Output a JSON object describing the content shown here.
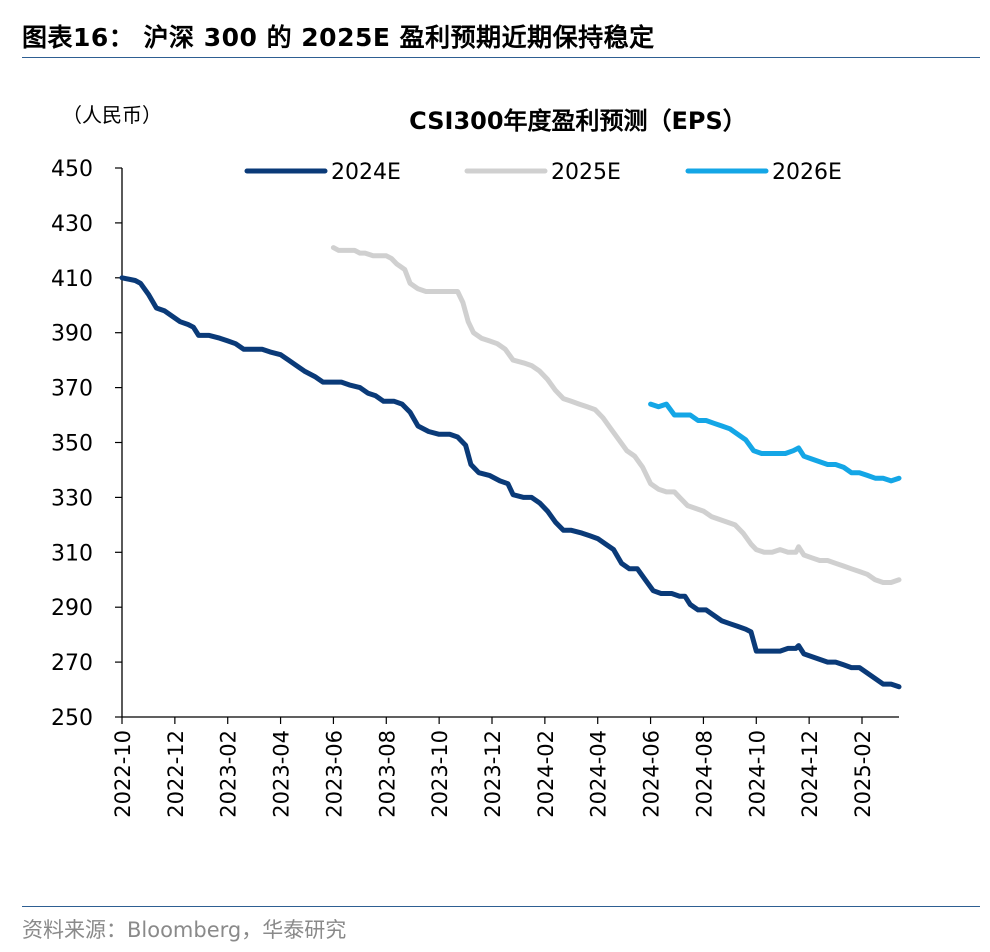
{
  "figure": {
    "title": "图表16：  沪深 300 的 2025E 盈利预期近期保持稳定",
    "source": "资料来源：Bloomberg，华泰研究"
  },
  "chart_data": {
    "type": "line",
    "title": "CSI300年度盈利预测（EPS）",
    "ylabel": "（人民币）",
    "xlabel": "",
    "ylim": [
      250,
      450
    ],
    "yticks": [
      250,
      270,
      290,
      310,
      330,
      350,
      370,
      390,
      410,
      430,
      450
    ],
    "xlim": [
      0,
      29.4
    ],
    "x_tick_positions": [
      0,
      2,
      4,
      6,
      8,
      10,
      12,
      14,
      16,
      18,
      20,
      22,
      24,
      26,
      28
    ],
    "x_tick_labels": [
      "2022-10",
      "2022-12",
      "2023-02",
      "2023-04",
      "2023-06",
      "2023-08",
      "2023-10",
      "2023-12",
      "2024-02",
      "2024-04",
      "2024-06",
      "2024-08",
      "2024-10",
      "2024-12",
      "2025-02"
    ],
    "x_unit": "months since 2022-10",
    "legend_position": "top",
    "series": [
      {
        "name": "2024E",
        "color": "#0a3a78",
        "points": [
          [
            0,
            410
          ],
          [
            0.5,
            409
          ],
          [
            0.7,
            408
          ],
          [
            1.0,
            404
          ],
          [
            1.3,
            399
          ],
          [
            1.6,
            398
          ],
          [
            1.9,
            396
          ],
          [
            2.2,
            394
          ],
          [
            2.5,
            393
          ],
          [
            2.7,
            392
          ],
          [
            2.9,
            389
          ],
          [
            3.3,
            389
          ],
          [
            3.7,
            388
          ],
          [
            4.0,
            387
          ],
          [
            4.3,
            386
          ],
          [
            4.6,
            384
          ],
          [
            5.0,
            384
          ],
          [
            5.3,
            384
          ],
          [
            5.6,
            383
          ],
          [
            6.0,
            382
          ],
          [
            6.3,
            380
          ],
          [
            6.6,
            378
          ],
          [
            6.9,
            376
          ],
          [
            7.3,
            374
          ],
          [
            7.6,
            372
          ],
          [
            8.0,
            372
          ],
          [
            8.3,
            372
          ],
          [
            8.6,
            371
          ],
          [
            9.0,
            370
          ],
          [
            9.3,
            368
          ],
          [
            9.6,
            367
          ],
          [
            9.9,
            365
          ],
          [
            10.3,
            365
          ],
          [
            10.6,
            364
          ],
          [
            10.9,
            361
          ],
          [
            11.2,
            356
          ],
          [
            11.6,
            354
          ],
          [
            12.0,
            353
          ],
          [
            12.4,
            353
          ],
          [
            12.7,
            352
          ],
          [
            13.0,
            349
          ],
          [
            13.2,
            342
          ],
          [
            13.5,
            339
          ],
          [
            13.9,
            338
          ],
          [
            14.3,
            336
          ],
          [
            14.6,
            335
          ],
          [
            14.8,
            331
          ],
          [
            15.2,
            330
          ],
          [
            15.5,
            330
          ],
          [
            15.8,
            328
          ],
          [
            16.1,
            325
          ],
          [
            16.4,
            321
          ],
          [
            16.7,
            318
          ],
          [
            17.0,
            318
          ],
          [
            17.4,
            317
          ],
          [
            17.7,
            316
          ],
          [
            18.0,
            315
          ],
          [
            18.3,
            313
          ],
          [
            18.6,
            311
          ],
          [
            18.9,
            306
          ],
          [
            19.2,
            304
          ],
          [
            19.5,
            304
          ],
          [
            19.8,
            300
          ],
          [
            20.1,
            296
          ],
          [
            20.4,
            295
          ],
          [
            20.8,
            295
          ],
          [
            21.1,
            294
          ],
          [
            21.3,
            294
          ],
          [
            21.5,
            291
          ],
          [
            21.8,
            289
          ],
          [
            22.1,
            289
          ],
          [
            22.4,
            287
          ],
          [
            22.7,
            285
          ],
          [
            23.0,
            284
          ],
          [
            23.3,
            283
          ],
          [
            23.6,
            282
          ],
          [
            23.8,
            281
          ],
          [
            24.0,
            274
          ],
          [
            24.3,
            274
          ],
          [
            24.6,
            274
          ],
          [
            24.9,
            274
          ],
          [
            25.2,
            275
          ],
          [
            25.5,
            275
          ],
          [
            25.6,
            276
          ],
          [
            25.8,
            273
          ],
          [
            26.1,
            272
          ],
          [
            26.4,
            271
          ],
          [
            26.7,
            270
          ],
          [
            27.0,
            270
          ],
          [
            27.3,
            269
          ],
          [
            27.6,
            268
          ],
          [
            27.9,
            268
          ],
          [
            28.2,
            266
          ],
          [
            28.5,
            264
          ],
          [
            28.8,
            262
          ],
          [
            29.1,
            262
          ],
          [
            29.4,
            261
          ]
        ]
      },
      {
        "name": "2025E",
        "color": "#d0d0d0",
        "points": [
          [
            8.0,
            421
          ],
          [
            8.2,
            420
          ],
          [
            8.4,
            420
          ],
          [
            8.6,
            420
          ],
          [
            8.8,
            420
          ],
          [
            9.0,
            419
          ],
          [
            9.2,
            419
          ],
          [
            9.5,
            418
          ],
          [
            9.8,
            418
          ],
          [
            10.0,
            418
          ],
          [
            10.2,
            417
          ],
          [
            10.4,
            415
          ],
          [
            10.7,
            413
          ],
          [
            10.9,
            408
          ],
          [
            11.2,
            406
          ],
          [
            11.5,
            405
          ],
          [
            11.8,
            405
          ],
          [
            12.1,
            405
          ],
          [
            12.4,
            405
          ],
          [
            12.7,
            405
          ],
          [
            12.9,
            401
          ],
          [
            13.1,
            394
          ],
          [
            13.3,
            390
          ],
          [
            13.6,
            388
          ],
          [
            13.9,
            387
          ],
          [
            14.2,
            386
          ],
          [
            14.5,
            384
          ],
          [
            14.8,
            380
          ],
          [
            15.2,
            379
          ],
          [
            15.5,
            378
          ],
          [
            15.8,
            376
          ],
          [
            16.1,
            373
          ],
          [
            16.4,
            369
          ],
          [
            16.7,
            366
          ],
          [
            17.0,
            365
          ],
          [
            17.3,
            364
          ],
          [
            17.6,
            363
          ],
          [
            17.9,
            362
          ],
          [
            18.2,
            359
          ],
          [
            18.5,
            355
          ],
          [
            18.8,
            351
          ],
          [
            19.1,
            347
          ],
          [
            19.4,
            345
          ],
          [
            19.7,
            341
          ],
          [
            20.0,
            335
          ],
          [
            20.3,
            333
          ],
          [
            20.6,
            332
          ],
          [
            20.9,
            332
          ],
          [
            21.1,
            330
          ],
          [
            21.4,
            327
          ],
          [
            21.7,
            326
          ],
          [
            22.0,
            325
          ],
          [
            22.3,
            323
          ],
          [
            22.6,
            322
          ],
          [
            22.9,
            321
          ],
          [
            23.2,
            320
          ],
          [
            23.5,
            317
          ],
          [
            23.8,
            313
          ],
          [
            24.0,
            311
          ],
          [
            24.3,
            310
          ],
          [
            24.6,
            310
          ],
          [
            24.9,
            311
          ],
          [
            25.2,
            310
          ],
          [
            25.5,
            310
          ],
          [
            25.6,
            312
          ],
          [
            25.8,
            309
          ],
          [
            26.1,
            308
          ],
          [
            26.4,
            307
          ],
          [
            26.7,
            307
          ],
          [
            27.0,
            306
          ],
          [
            27.3,
            305
          ],
          [
            27.6,
            304
          ],
          [
            27.9,
            303
          ],
          [
            28.2,
            302
          ],
          [
            28.5,
            300
          ],
          [
            28.8,
            299
          ],
          [
            29.1,
            299
          ],
          [
            29.4,
            300
          ]
        ]
      },
      {
        "name": "2026E",
        "color": "#14a6e6",
        "points": [
          [
            20.0,
            364
          ],
          [
            20.3,
            363
          ],
          [
            20.6,
            364
          ],
          [
            20.9,
            360
          ],
          [
            21.2,
            360
          ],
          [
            21.5,
            360
          ],
          [
            21.8,
            358
          ],
          [
            22.1,
            358
          ],
          [
            22.4,
            357
          ],
          [
            22.7,
            356
          ],
          [
            23.0,
            355
          ],
          [
            23.3,
            353
          ],
          [
            23.6,
            351
          ],
          [
            23.9,
            347
          ],
          [
            24.2,
            346
          ],
          [
            24.5,
            346
          ],
          [
            24.8,
            346
          ],
          [
            25.1,
            346
          ],
          [
            25.4,
            347
          ],
          [
            25.6,
            348
          ],
          [
            25.8,
            345
          ],
          [
            26.1,
            344
          ],
          [
            26.4,
            343
          ],
          [
            26.7,
            342
          ],
          [
            27.0,
            342
          ],
          [
            27.3,
            341
          ],
          [
            27.6,
            339
          ],
          [
            27.9,
            339
          ],
          [
            28.2,
            338
          ],
          [
            28.5,
            337
          ],
          [
            28.8,
            337
          ],
          [
            29.1,
            336
          ],
          [
            29.4,
            337
          ]
        ]
      }
    ]
  }
}
